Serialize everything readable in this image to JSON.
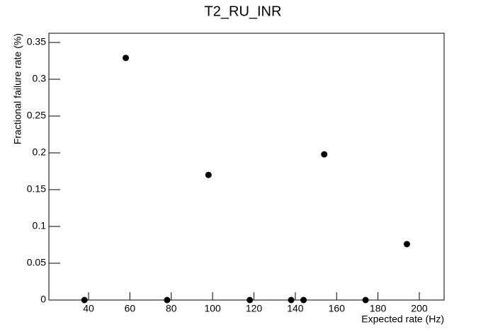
{
  "chart_data": {
    "type": "scatter",
    "title": "T2_RU_INR",
    "x_label": "Expected rate (Hz)",
    "y_label": "Fractional failure rate (%)",
    "x": [
      38,
      58,
      78,
      98,
      118,
      138,
      144,
      154,
      174,
      194
    ],
    "values": [
      0,
      0.329,
      0,
      0.17,
      0,
      0,
      0,
      0.198,
      0,
      0.076
    ],
    "color": "#000000",
    "xlim": [
      20.8,
      212
    ],
    "xticks": [
      40,
      60,
      80,
      100,
      120,
      140,
      160,
      180,
      200
    ],
    "ylim": [
      0,
      0.3625
    ],
    "yticks": [
      0,
      0.05,
      0.1,
      0.15,
      0.2,
      0.25,
      0.3,
      0.35
    ],
    "grid": false
  }
}
